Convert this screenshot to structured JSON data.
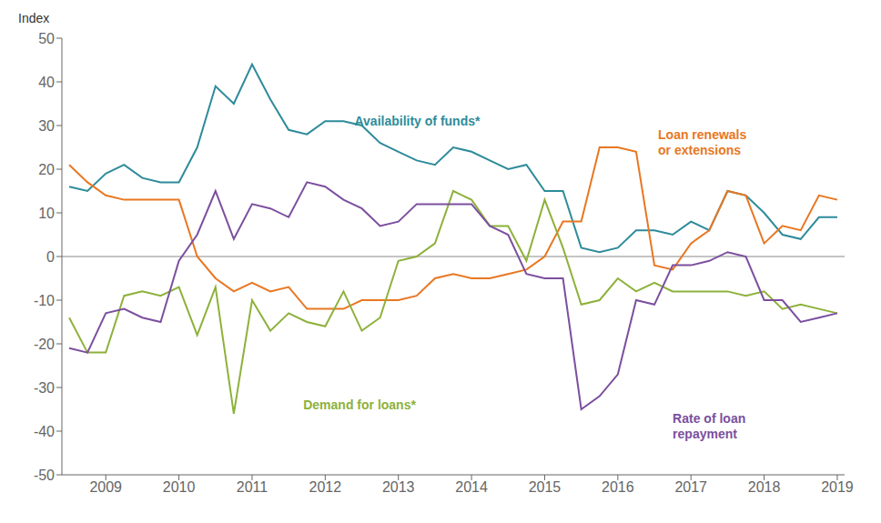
{
  "chart_data": {
    "type": "line",
    "ylabel": "Index",
    "x": [
      2008.5,
      2008.75,
      2009.0,
      2009.25,
      2009.5,
      2009.75,
      2010.0,
      2010.25,
      2010.5,
      2010.75,
      2011.0,
      2011.25,
      2011.5,
      2011.75,
      2012.0,
      2012.25,
      2012.5,
      2012.75,
      2013.0,
      2013.25,
      2013.5,
      2013.75,
      2014.0,
      2014.25,
      2014.5,
      2014.75,
      2015.0,
      2015.25,
      2015.5,
      2015.75,
      2016.0,
      2016.25,
      2016.5,
      2016.75,
      2017.0,
      2017.25,
      2017.5,
      2017.75,
      2018.0,
      2018.25,
      2018.5,
      2018.75,
      2019.0
    ],
    "series": [
      {
        "name": "Availability of funds*",
        "color": "#2E8B9A",
        "values": [
          16,
          15,
          19,
          21,
          18,
          17,
          17,
          25,
          39,
          35,
          44,
          36,
          29,
          28,
          31,
          31,
          30,
          26,
          24,
          22,
          21,
          25,
          24,
          22,
          20,
          21,
          15,
          15,
          2,
          1,
          2,
          6,
          6,
          5,
          8,
          6,
          15,
          14,
          10,
          5,
          4,
          9,
          9
        ]
      },
      {
        "name": "Loan renewals or extensions",
        "color": "#E87722",
        "values": [
          21,
          17,
          14,
          13,
          13,
          13,
          13,
          0,
          -5,
          -8,
          -6,
          -8,
          -7,
          -12,
          -12,
          -12,
          -10,
          -10,
          -10,
          -9,
          -5,
          -4,
          -5,
          -5,
          -4,
          -3,
          0,
          8,
          8,
          25,
          25,
          24,
          -2,
          -3,
          3,
          6,
          15,
          14,
          3,
          7,
          6,
          14,
          13
        ]
      },
      {
        "name": "Demand for loans*",
        "color": "#8DB13B",
        "values": [
          -14,
          -22,
          -22,
          -9,
          -8,
          -9,
          -7,
          -18,
          -7,
          -36,
          -10,
          -17,
          -13,
          -15,
          -16,
          -8,
          -17,
          -14,
          -1,
          0,
          3,
          15,
          13,
          7,
          7,
          -1,
          13,
          2,
          -11,
          -10,
          -5,
          -8,
          -6,
          -8,
          -8,
          -8,
          -8,
          -9,
          -8,
          -12,
          -11,
          -12,
          -13
        ]
      },
      {
        "name": "Rate of loan repayment",
        "color": "#7B4F9E",
        "values": [
          -21,
          -22,
          -13,
          -12,
          -14,
          -15,
          -1,
          5,
          15,
          4,
          12,
          11,
          9,
          17,
          16,
          13,
          11,
          7,
          8,
          12,
          12,
          12,
          12,
          7,
          5,
          -4,
          -5,
          -5,
          -35,
          -32,
          -27,
          -10,
          -11,
          -2,
          -2,
          -1,
          1,
          0,
          -10,
          -10,
          -15,
          -14,
          -13
        ]
      }
    ],
    "annotations": [
      {
        "text": "Availability of funds*",
        "x": 2012.4,
        "y": 32,
        "color": "#2E8B9A"
      },
      {
        "text": "Loan renewals\nor extensions",
        "x": 2016.55,
        "y": 29,
        "color": "#E87722"
      },
      {
        "text": "Demand for loans*",
        "x": 2011.7,
        "y": -33,
        "color": "#8DB13B"
      },
      {
        "text": "Rate of loan\nrepayment",
        "x": 2016.75,
        "y": -36,
        "color": "#7B4F9E"
      }
    ],
    "xlim": [
      2008.4,
      2019.1
    ],
    "xticks": [
      2009,
      2010,
      2011,
      2012,
      2013,
      2014,
      2015,
      2016,
      2017,
      2018,
      2019
    ],
    "ylim": [
      -50,
      50
    ],
    "yticks": [
      -50,
      -40,
      -30,
      -20,
      -10,
      0,
      10,
      20,
      30,
      40,
      50
    ]
  }
}
